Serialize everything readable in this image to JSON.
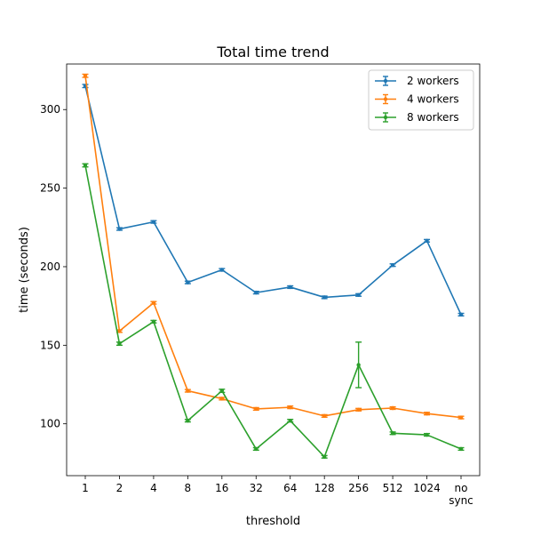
{
  "chart_data": {
    "type": "line",
    "title": "Total time trend",
    "xlabel": "threshold",
    "ylabel": "time (seconds)",
    "categories": [
      "1",
      "2",
      "4",
      "8",
      "16",
      "32",
      "64",
      "128",
      "256",
      "512",
      "1024",
      "no\nsync"
    ],
    "ylim": [
      67,
      329
    ],
    "yticks": [
      100,
      150,
      200,
      250,
      300
    ],
    "grid": false,
    "legend": "top-right",
    "series": [
      {
        "name": "2 workers",
        "color": "#1f77b4",
        "values": [
          315,
          224,
          228.5,
          190,
          198,
          183.5,
          187,
          180.5,
          182,
          201,
          216.5,
          169.5
        ],
        "errors": [
          1,
          0.8,
          0.8,
          0.8,
          0.8,
          0.8,
          0.8,
          0.8,
          0.8,
          0.8,
          0.8,
          0.8
        ]
      },
      {
        "name": "4 workers",
        "color": "#ff7f0e",
        "values": [
          321.5,
          159,
          177,
          121,
          116,
          109.5,
          110.5,
          105,
          109,
          110,
          106.5,
          104
        ],
        "errors": [
          1,
          0.8,
          0.8,
          0.8,
          0.8,
          0.8,
          0.8,
          0.8,
          0.8,
          0.8,
          0.8,
          0.8
        ]
      },
      {
        "name": "8 workers",
        "color": "#2ca02c",
        "values": [
          264.5,
          151,
          165,
          102,
          121,
          84,
          102,
          79,
          137.5,
          94,
          93,
          84
        ],
        "errors": [
          1,
          1,
          0.8,
          0.8,
          1,
          0.8,
          0.8,
          0.8,
          14.5,
          0.8,
          0.8,
          0.8
        ]
      }
    ]
  }
}
